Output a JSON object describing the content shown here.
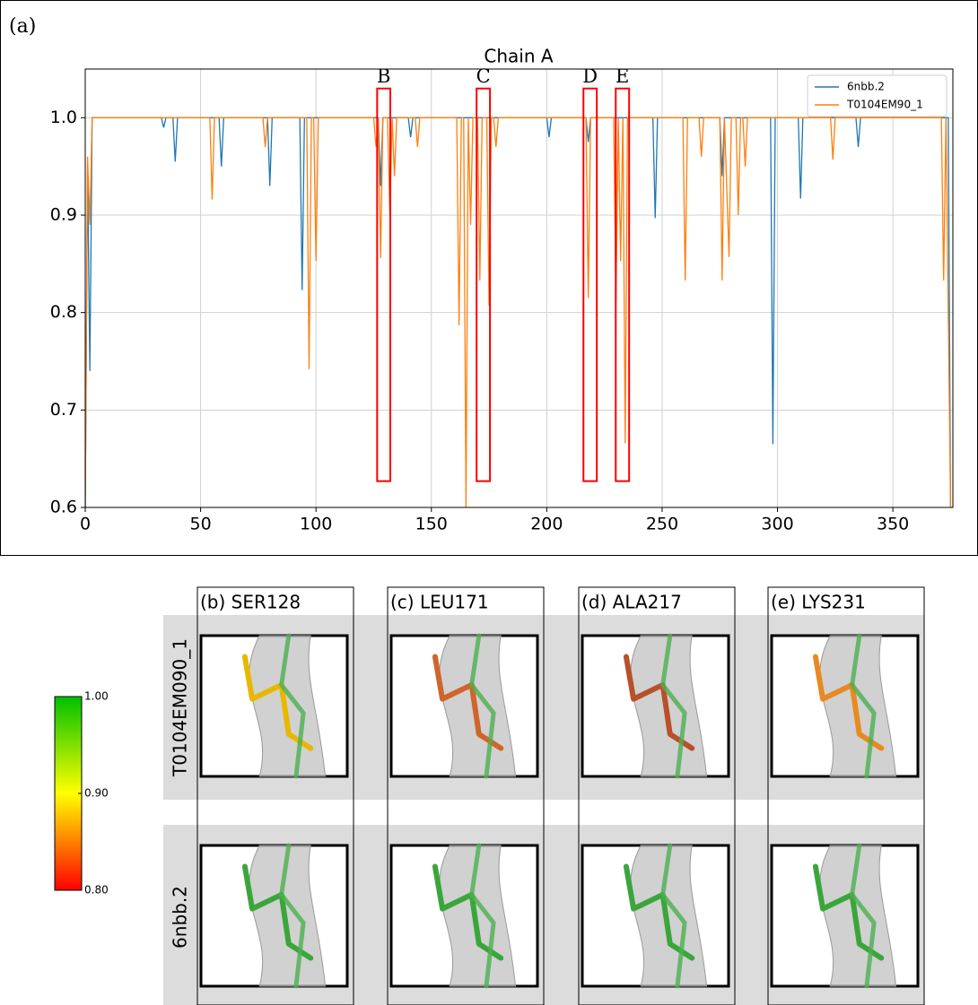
{
  "chart_data": {
    "type": "line",
    "label": "(a)",
    "title": "Chain A",
    "xlim": [
      0,
      376
    ],
    "ylim": [
      0.6,
      1.05
    ],
    "xticks": [
      0,
      50,
      100,
      150,
      200,
      250,
      300,
      350
    ],
    "yticks": [
      0.6,
      0.7,
      0.8,
      0.9,
      {
        "value": 1,
        "label": "1.0"
      }
    ],
    "grid": true,
    "legend": "upper right",
    "series": [
      {
        "name": "6nbb.2",
        "color": "#1f77b4",
        "x": [
          0,
          1,
          2,
          3,
          33,
          34,
          35,
          38,
          39,
          40,
          58,
          59,
          60,
          79,
          80,
          81,
          93,
          94,
          95,
          127,
          128,
          129,
          140,
          141,
          142,
          200,
          201,
          202,
          217,
          218,
          219,
          246,
          247,
          248,
          275,
          276,
          277,
          297,
          298,
          299,
          309,
          310,
          311,
          334,
          335,
          336,
          374,
          375
        ],
        "values": [
          0.6,
          0.95,
          0.74,
          1,
          1,
          0.99,
          1,
          1,
          0.955,
          1,
          1,
          0.95,
          1,
          1,
          0.93,
          1,
          1,
          0.823,
          1,
          1,
          0.93,
          1,
          1,
          0.98,
          1,
          1,
          0.98,
          1,
          1,
          0.975,
          1,
          1,
          0.897,
          1,
          1,
          0.94,
          1,
          1,
          0.665,
          1,
          1,
          0.917,
          1,
          1,
          0.97,
          1,
          1,
          0.6
        ]
      },
      {
        "name": "T0104EM90_1",
        "color": "#ff7f0e",
        "x": [
          0,
          1,
          2,
          3,
          54,
          55,
          56,
          77,
          78,
          79,
          96,
          97,
          98,
          99,
          100,
          101,
          125,
          126,
          127,
          128,
          129,
          131,
          132,
          133,
          134,
          135,
          143,
          144,
          145,
          161,
          162,
          163,
          164,
          165,
          166,
          167,
          168,
          170,
          171,
          172,
          174,
          175,
          176,
          177,
          178,
          179,
          217,
          218,
          219,
          229,
          230,
          231,
          232,
          233,
          234,
          235,
          259,
          260,
          261,
          266,
          267,
          268,
          275,
          276,
          277,
          279,
          280,
          282,
          283,
          284,
          285,
          286,
          287,
          323,
          324,
          325,
          371,
          372,
          373,
          375
        ],
        "values": [
          0.6,
          0.96,
          0.89,
          1,
          1,
          0.916,
          1,
          1,
          0.97,
          1,
          1,
          0.742,
          1,
          1,
          0.853,
          1,
          1,
          0.97,
          1,
          0.856,
          1,
          1,
          0.9,
          1,
          0.94,
          1,
          1,
          0.97,
          1,
          1,
          0.787,
          1,
          1,
          0.6,
          1,
          0.89,
          1,
          1,
          0.833,
          1,
          1,
          0.807,
          1,
          1,
          0.97,
          1,
          1,
          0.815,
          1,
          1,
          0.81,
          1,
          0.853,
          1,
          0.666,
          1,
          1,
          0.833,
          1,
          1,
          0.96,
          1,
          1,
          0.833,
          1,
          0.857,
          1,
          1,
          0.9,
          1,
          1,
          0.95,
          1,
          1,
          0.957,
          1,
          1,
          0.833,
          1,
          0.6
        ]
      }
    ],
    "highlights": [
      {
        "label": "B",
        "x": [
          126.5,
          132.2
        ],
        "y": [
          0.627,
          1.03
        ],
        "color": "#ff0000"
      },
      {
        "label": "C",
        "x": [
          169.6,
          175.4
        ],
        "y": [
          0.627,
          1.03
        ],
        "color": "#ff0000"
      },
      {
        "label": "D",
        "x": [
          215.9,
          221.7
        ],
        "y": [
          0.627,
          1.03
        ],
        "color": "#ff0000"
      },
      {
        "label": "E",
        "x": [
          229.9,
          235.7
        ],
        "y": [
          0.627,
          1.03
        ],
        "color": "#ff0000"
      }
    ]
  },
  "panels": {
    "columns": [
      "(b) SER128",
      "(c) LEU171",
      "(d) ALA217",
      "(e) LYS231"
    ],
    "rows": [
      "T0104EM090_1",
      "6nbb.2"
    ]
  },
  "colorbar": {
    "range": [
      0.8,
      1.0
    ],
    "colors": [
      "#ff0000",
      "#ffff00",
      "#00c000"
    ],
    "ticks": [
      {
        "value": 1,
        "label": "1.00"
      },
      {
        "value": 0.9,
        "label": "0.90"
      },
      {
        "value": 0.8,
        "label": "0.80"
      }
    ]
  }
}
